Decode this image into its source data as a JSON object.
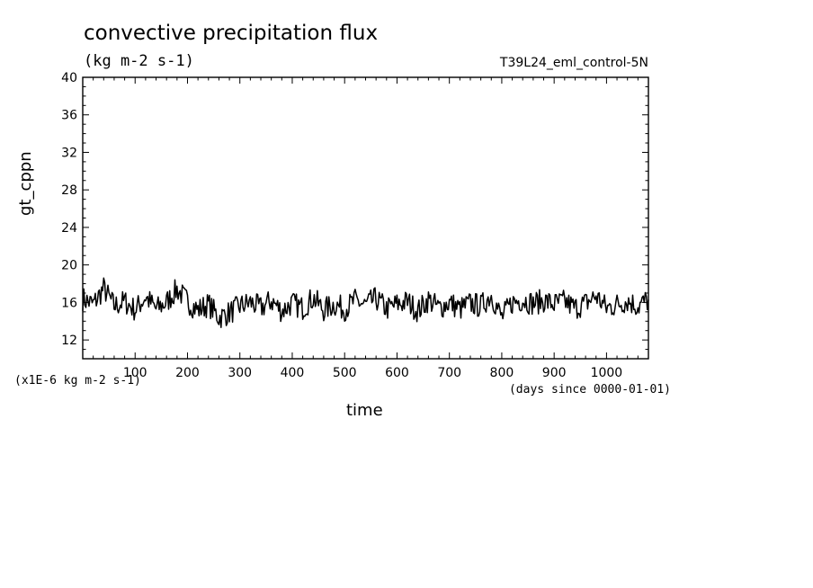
{
  "chart_data": {
    "type": "line",
    "title": "convective precipitation flux",
    "units": "(kg m-2 s-1)",
    "run_id": "T39L24_eml_control-5N",
    "xlabel": "time",
    "ylabel": "gt_cppn",
    "scale_note": "(x1E-6 kg m-2 s-1)",
    "time_unit_note": "(days since 0000-01-01)",
    "xlim": [
      0,
      1080
    ],
    "ylim": [
      10,
      40
    ],
    "xticks": [
      100,
      200,
      300,
      400,
      500,
      600,
      700,
      800,
      900,
      1000
    ],
    "yticks": [
      12,
      16,
      20,
      24,
      28,
      32,
      36,
      40
    ],
    "grid": false,
    "series": [
      {
        "x": [
          0,
          20,
          40,
          60,
          80,
          100,
          120,
          140,
          160,
          180,
          200,
          220,
          240,
          260,
          280,
          300,
          320,
          340,
          360,
          380,
          400,
          420,
          440,
          460,
          480,
          500,
          520,
          540,
          560,
          580,
          600,
          620,
          640,
          660,
          680,
          700,
          720,
          740,
          760,
          780,
          800,
          820,
          840,
          860,
          880,
          900,
          920,
          940,
          960,
          980,
          1000,
          1020,
          1040,
          1060,
          1080
        ],
        "y": [
          16.4,
          15.8,
          17.5,
          15.6,
          16.1,
          15.2,
          16.6,
          15.3,
          16.0,
          17.4,
          16.1,
          15.2,
          15.8,
          14.4,
          14.9,
          15.6,
          16.0,
          15.4,
          16.2,
          15.1,
          15.9,
          15.4,
          16.5,
          15.2,
          15.8,
          15.3,
          16.2,
          15.7,
          16.4,
          15.3,
          15.8,
          16.1,
          15.1,
          16.3,
          15.4,
          16.0,
          15.3,
          15.9,
          15.6,
          16.8,
          14.4,
          16.0,
          16.3,
          15.9,
          16.2,
          15.8,
          16.1,
          15.4,
          15.9,
          16.7,
          15.4,
          15.8,
          16.2,
          15.6,
          16.3
        ]
      }
    ]
  }
}
